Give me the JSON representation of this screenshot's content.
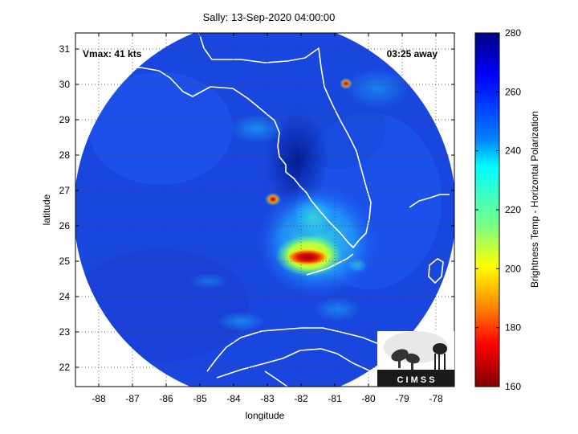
{
  "title": "Sally: 13-Sep-2020 04:00:00",
  "vmax_text": "Vmax: 41 kts",
  "time_away": "03:25 away",
  "xlabel": "longitude",
  "ylabel": "latitude",
  "colorbar_label": "Brightness Temp - Horizontal Polarization",
  "x_ticks": [
    "-88",
    "-87",
    "-86",
    "-85",
    "-84",
    "-83",
    "-82",
    "-81",
    "-80",
    "-79",
    "-78"
  ],
  "y_ticks": [
    "31",
    "30",
    "29",
    "28",
    "27",
    "26",
    "25",
    "24",
    "23",
    "22"
  ],
  "colorbar_ticks": [
    "280",
    "260",
    "240",
    "220",
    "200",
    "180",
    "160"
  ],
  "logo_text": "C I M S S",
  "colors": {
    "background_ocean": "#1a3fd8",
    "coastline": "#ffffff",
    "cold_core": "#8b0000"
  }
}
